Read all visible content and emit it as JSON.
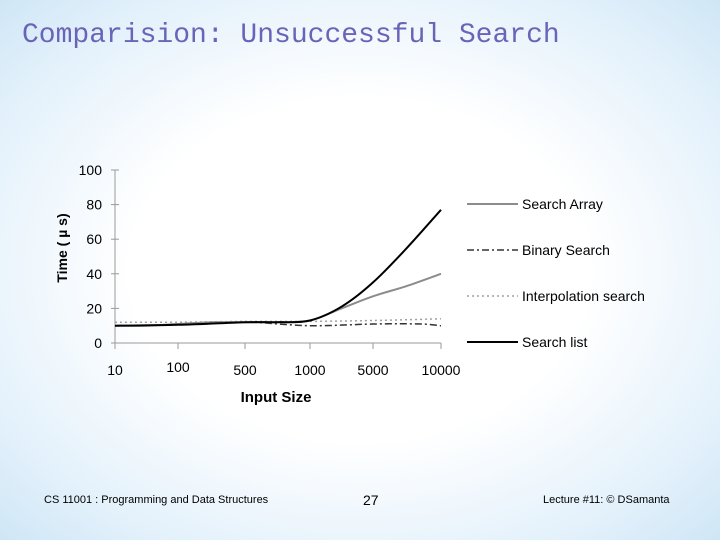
{
  "slide": {
    "title": "Comparision: Unsuccessful Search"
  },
  "footer": {
    "course": "CS 11001 : Programming and Data Structures",
    "page_number": "27",
    "lecture": "Lecture #11: © DSamanta"
  },
  "chart_data": {
    "type": "line",
    "xlabel": "Input Size",
    "ylabel": "Time ( µ s)",
    "categories": [
      "10",
      "100",
      "500",
      "1000",
      "5000",
      "10000"
    ],
    "ylim": [
      0,
      100
    ],
    "yticks": [
      0,
      20,
      40,
      60,
      80,
      100
    ],
    "grid": false,
    "legend_position": "right",
    "series": [
      {
        "name": "Search Array",
        "style": "solid",
        "color": "#8c8c8c",
        "points": [
          [
            0,
            10
          ],
          [
            0.5,
            10
          ],
          [
            1,
            11
          ],
          [
            1.5,
            12
          ],
          [
            2,
            12
          ],
          [
            2.5,
            12
          ],
          [
            3,
            13
          ],
          [
            3.5,
            20
          ],
          [
            4,
            27
          ],
          [
            4.5,
            33
          ],
          [
            5,
            40
          ]
        ]
      },
      {
        "name": "Binary Search",
        "style": "dashdot",
        "color": "#333333",
        "points": [
          [
            0,
            10
          ],
          [
            1,
            10.5
          ],
          [
            2,
            12
          ],
          [
            3,
            10
          ],
          [
            4,
            11
          ],
          [
            4.7,
            11
          ],
          [
            5,
            10
          ]
        ]
      },
      {
        "name": "Interpolation search",
        "style": "dotted",
        "color": "#a0a0a0",
        "points": [
          [
            0,
            12
          ],
          [
            1,
            12
          ],
          [
            2,
            12.5
          ],
          [
            3,
            12.5
          ],
          [
            4,
            13
          ],
          [
            5,
            14
          ]
        ]
      },
      {
        "name": "Search list",
        "style": "solid",
        "color": "#000000",
        "points": [
          [
            0,
            10
          ],
          [
            1,
            10.5
          ],
          [
            2,
            12
          ],
          [
            2.5,
            12
          ],
          [
            3,
            13
          ],
          [
            3.5,
            21
          ],
          [
            4,
            35
          ],
          [
            4.5,
            55
          ],
          [
            5,
            77
          ]
        ]
      }
    ]
  }
}
